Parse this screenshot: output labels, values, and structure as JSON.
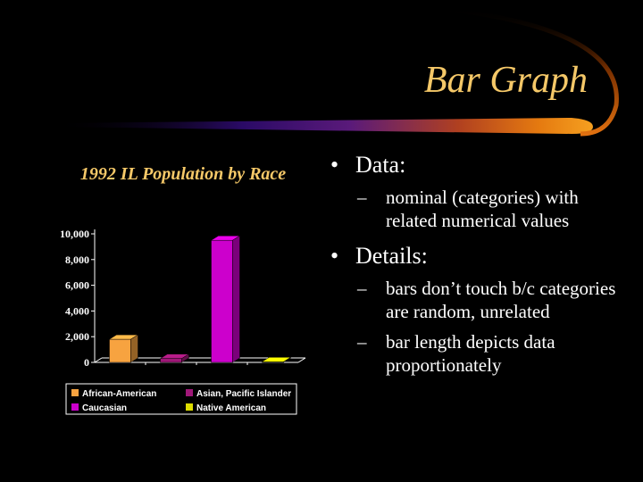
{
  "slide": {
    "title": "Bar Graph",
    "accent_color": "#f5c868",
    "bullets": [
      {
        "text": "Data:",
        "subitems": [
          "nominal (categories) with related numerical values"
        ]
      },
      {
        "text": "Details:",
        "subitems": [
          "bars don’t touch b/c categories are random, unrelated",
          "bar length depicts data proportionately"
        ]
      }
    ]
  },
  "chart_data": {
    "type": "bar",
    "title": "1992 IL Population by Race",
    "categories": [
      "African-American",
      "Asian, Pacific Islander",
      "Caucasian",
      "Native American"
    ],
    "values": [
      1800,
      300,
      9500,
      50
    ],
    "colors": [
      "#f7a340",
      "#a01878",
      "#cc00cc",
      "#dddd00"
    ],
    "ylim": [
      0,
      10000
    ],
    "yticks": [
      0,
      2000,
      4000,
      6000,
      8000,
      10000
    ],
    "ytick_labels": [
      "0",
      "2,000",
      "4,000",
      "6,000",
      "8,000",
      "10,000"
    ],
    "grid": false,
    "three_d": true,
    "legend": {
      "placement": "bottom",
      "entries": [
        "African-American",
        "Asian, Pacific Islander",
        "Caucasian",
        "Native American"
      ]
    }
  }
}
